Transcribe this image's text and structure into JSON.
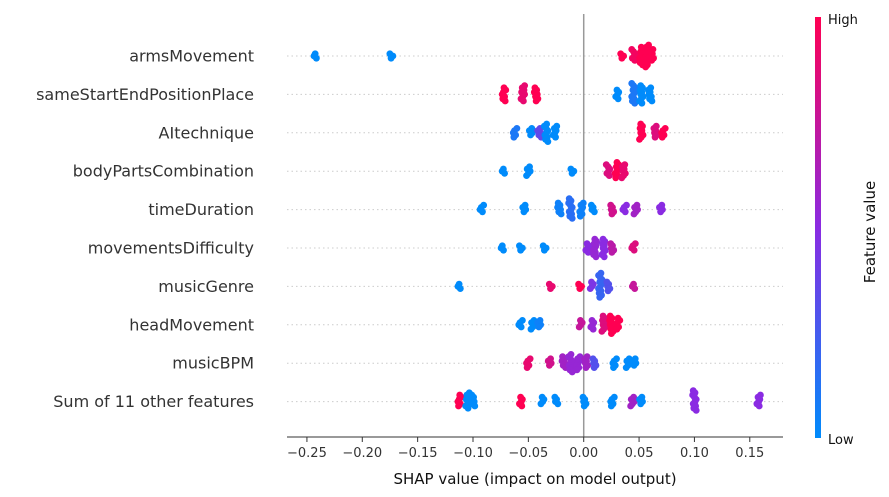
{
  "chart_data": {
    "type": "scatter",
    "subtype": "shap-beeswarm",
    "xlabel": "SHAP value (impact on model output)",
    "xlim": [
      -0.268,
      0.18
    ],
    "xticks": [
      -0.25,
      -0.2,
      -0.15,
      -0.1,
      -0.05,
      0.0,
      0.05,
      0.1,
      0.15
    ],
    "xtick_labels": [
      "−0.25",
      "−0.20",
      "−0.15",
      "−0.10",
      "−0.05",
      "0.00",
      "0.05",
      "0.10",
      "0.15"
    ],
    "zero_line": true,
    "grid": "dotted-horizontal-per-feature",
    "colorbar": {
      "label": "Feature value",
      "high_label": "High",
      "low_label": "Low",
      "high_color": "#ff0052",
      "mid_color": "#8a2be2",
      "low_color": "#008bfb",
      "position": "right"
    },
    "features": [
      {
        "name": "armsMovement",
        "points": [
          {
            "x": -0.242,
            "v": 0.0,
            "n": 3
          },
          {
            "x": -0.174,
            "v": 0.0,
            "n": 3
          },
          {
            "x": 0.035,
            "v": 1.0,
            "n": 3
          },
          {
            "x": 0.045,
            "v": 0.95,
            "n": 6
          },
          {
            "x": 0.052,
            "v": 1.0,
            "n": 9
          },
          {
            "x": 0.057,
            "v": 1.0,
            "n": 11
          },
          {
            "x": 0.062,
            "v": 1.0,
            "n": 6
          }
        ]
      },
      {
        "name": "sameStartEndPositionPlace",
        "points": [
          {
            "x": -0.072,
            "v": 1.0,
            "n": 7
          },
          {
            "x": -0.055,
            "v": 0.9,
            "n": 8
          },
          {
            "x": -0.043,
            "v": 1.0,
            "n": 7
          },
          {
            "x": 0.03,
            "v": 0.0,
            "n": 5
          },
          {
            "x": 0.045,
            "v": 0.1,
            "n": 10
          },
          {
            "x": 0.052,
            "v": 0.0,
            "n": 9
          },
          {
            "x": 0.06,
            "v": 0.0,
            "n": 7
          }
        ]
      },
      {
        "name": "AItechnique",
        "points": [
          {
            "x": -0.062,
            "v": 0.1,
            "n": 5
          },
          {
            "x": -0.048,
            "v": 0.0,
            "n": 4
          },
          {
            "x": -0.04,
            "v": 0.35,
            "n": 5
          },
          {
            "x": -0.034,
            "v": 0.0,
            "n": 9
          },
          {
            "x": -0.026,
            "v": 0.0,
            "n": 6
          },
          {
            "x": 0.052,
            "v": 1.0,
            "n": 8
          },
          {
            "x": 0.065,
            "v": 0.85,
            "n": 6
          },
          {
            "x": 0.072,
            "v": 1.0,
            "n": 5
          }
        ]
      },
      {
        "name": "bodyPartsCombination",
        "points": [
          {
            "x": -0.072,
            "v": 0.0,
            "n": 3
          },
          {
            "x": -0.05,
            "v": 0.0,
            "n": 5
          },
          {
            "x": -0.01,
            "v": 0.0,
            "n": 3
          },
          {
            "x": 0.022,
            "v": 0.85,
            "n": 6
          },
          {
            "x": 0.03,
            "v": 1.0,
            "n": 8
          },
          {
            "x": 0.036,
            "v": 0.9,
            "n": 7
          }
        ]
      },
      {
        "name": "timeDuration",
        "points": [
          {
            "x": -0.092,
            "v": 0.0,
            "n": 4
          },
          {
            "x": -0.054,
            "v": 0.0,
            "n": 4
          },
          {
            "x": -0.022,
            "v": 0.05,
            "n": 6
          },
          {
            "x": -0.012,
            "v": 0.15,
            "n": 10
          },
          {
            "x": -0.002,
            "v": 0.05,
            "n": 7
          },
          {
            "x": 0.008,
            "v": 0.0,
            "n": 4
          },
          {
            "x": 0.026,
            "v": 0.8,
            "n": 5
          },
          {
            "x": 0.037,
            "v": 0.5,
            "n": 4
          },
          {
            "x": 0.047,
            "v": 0.6,
            "n": 5
          },
          {
            "x": 0.07,
            "v": 0.5,
            "n": 4
          }
        ]
      },
      {
        "name": "movementsDifficulty",
        "points": [
          {
            "x": -0.073,
            "v": 0.0,
            "n": 3
          },
          {
            "x": -0.057,
            "v": 0.0,
            "n": 3
          },
          {
            "x": -0.035,
            "v": 0.0,
            "n": 3
          },
          {
            "x": 0.003,
            "v": 0.5,
            "n": 5
          },
          {
            "x": 0.01,
            "v": 0.55,
            "n": 9
          },
          {
            "x": 0.018,
            "v": 0.5,
            "n": 9
          },
          {
            "x": 0.026,
            "v": 0.7,
            "n": 5
          },
          {
            "x": 0.045,
            "v": 0.85,
            "n": 4
          }
        ]
      },
      {
        "name": "musicGenre",
        "points": [
          {
            "x": -0.112,
            "v": 0.0,
            "n": 3
          },
          {
            "x": -0.03,
            "v": 0.9,
            "n": 3
          },
          {
            "x": -0.003,
            "v": 1.0,
            "n": 3
          },
          {
            "x": 0.007,
            "v": 0.45,
            "n": 4
          },
          {
            "x": 0.015,
            "v": 0.2,
            "n": 12
          },
          {
            "x": 0.022,
            "v": 0.3,
            "n": 5
          },
          {
            "x": 0.045,
            "v": 0.75,
            "n": 3
          }
        ]
      },
      {
        "name": "headMovement",
        "points": [
          {
            "x": -0.057,
            "v": 0.0,
            "n": 4
          },
          {
            "x": -0.046,
            "v": 0.0,
            "n": 5
          },
          {
            "x": -0.04,
            "v": 0.05,
            "n": 4
          },
          {
            "x": -0.003,
            "v": 0.75,
            "n": 4
          },
          {
            "x": 0.008,
            "v": 0.55,
            "n": 5
          },
          {
            "x": 0.018,
            "v": 0.85,
            "n": 8
          },
          {
            "x": 0.025,
            "v": 1.0,
            "n": 9
          },
          {
            "x": 0.031,
            "v": 1.0,
            "n": 6
          }
        ]
      },
      {
        "name": "musicBPM",
        "points": [
          {
            "x": -0.05,
            "v": 0.9,
            "n": 5
          },
          {
            "x": -0.031,
            "v": 0.8,
            "n": 4
          },
          {
            "x": -0.018,
            "v": 0.6,
            "n": 6
          },
          {
            "x": -0.012,
            "v": 0.55,
            "n": 9
          },
          {
            "x": -0.005,
            "v": 0.55,
            "n": 7
          },
          {
            "x": 0.002,
            "v": 0.6,
            "n": 6
          },
          {
            "x": 0.01,
            "v": 0.3,
            "n": 5
          },
          {
            "x": 0.028,
            "v": 0.0,
            "n": 5
          },
          {
            "x": 0.04,
            "v": 0.0,
            "n": 5
          },
          {
            "x": 0.046,
            "v": 0.0,
            "n": 4
          }
        ]
      },
      {
        "name": "Sum of 11 other features",
        "points": [
          {
            "x": -0.112,
            "v": 1.0,
            "n": 6
          },
          {
            "x": -0.105,
            "v": 0.0,
            "n": 8
          },
          {
            "x": -0.1,
            "v": 0.0,
            "n": 6
          },
          {
            "x": -0.057,
            "v": 1.0,
            "n": 5
          },
          {
            "x": -0.037,
            "v": 0.0,
            "n": 4
          },
          {
            "x": -0.025,
            "v": 0.0,
            "n": 4
          },
          {
            "x": 0.001,
            "v": 0.0,
            "n": 5
          },
          {
            "x": 0.026,
            "v": 0.0,
            "n": 5
          },
          {
            "x": 0.044,
            "v": 0.6,
            "n": 5
          },
          {
            "x": 0.052,
            "v": 0.0,
            "n": 4
          },
          {
            "x": 0.1,
            "v": 0.5,
            "n": 10
          },
          {
            "x": 0.158,
            "v": 0.5,
            "n": 6
          }
        ]
      }
    ]
  }
}
